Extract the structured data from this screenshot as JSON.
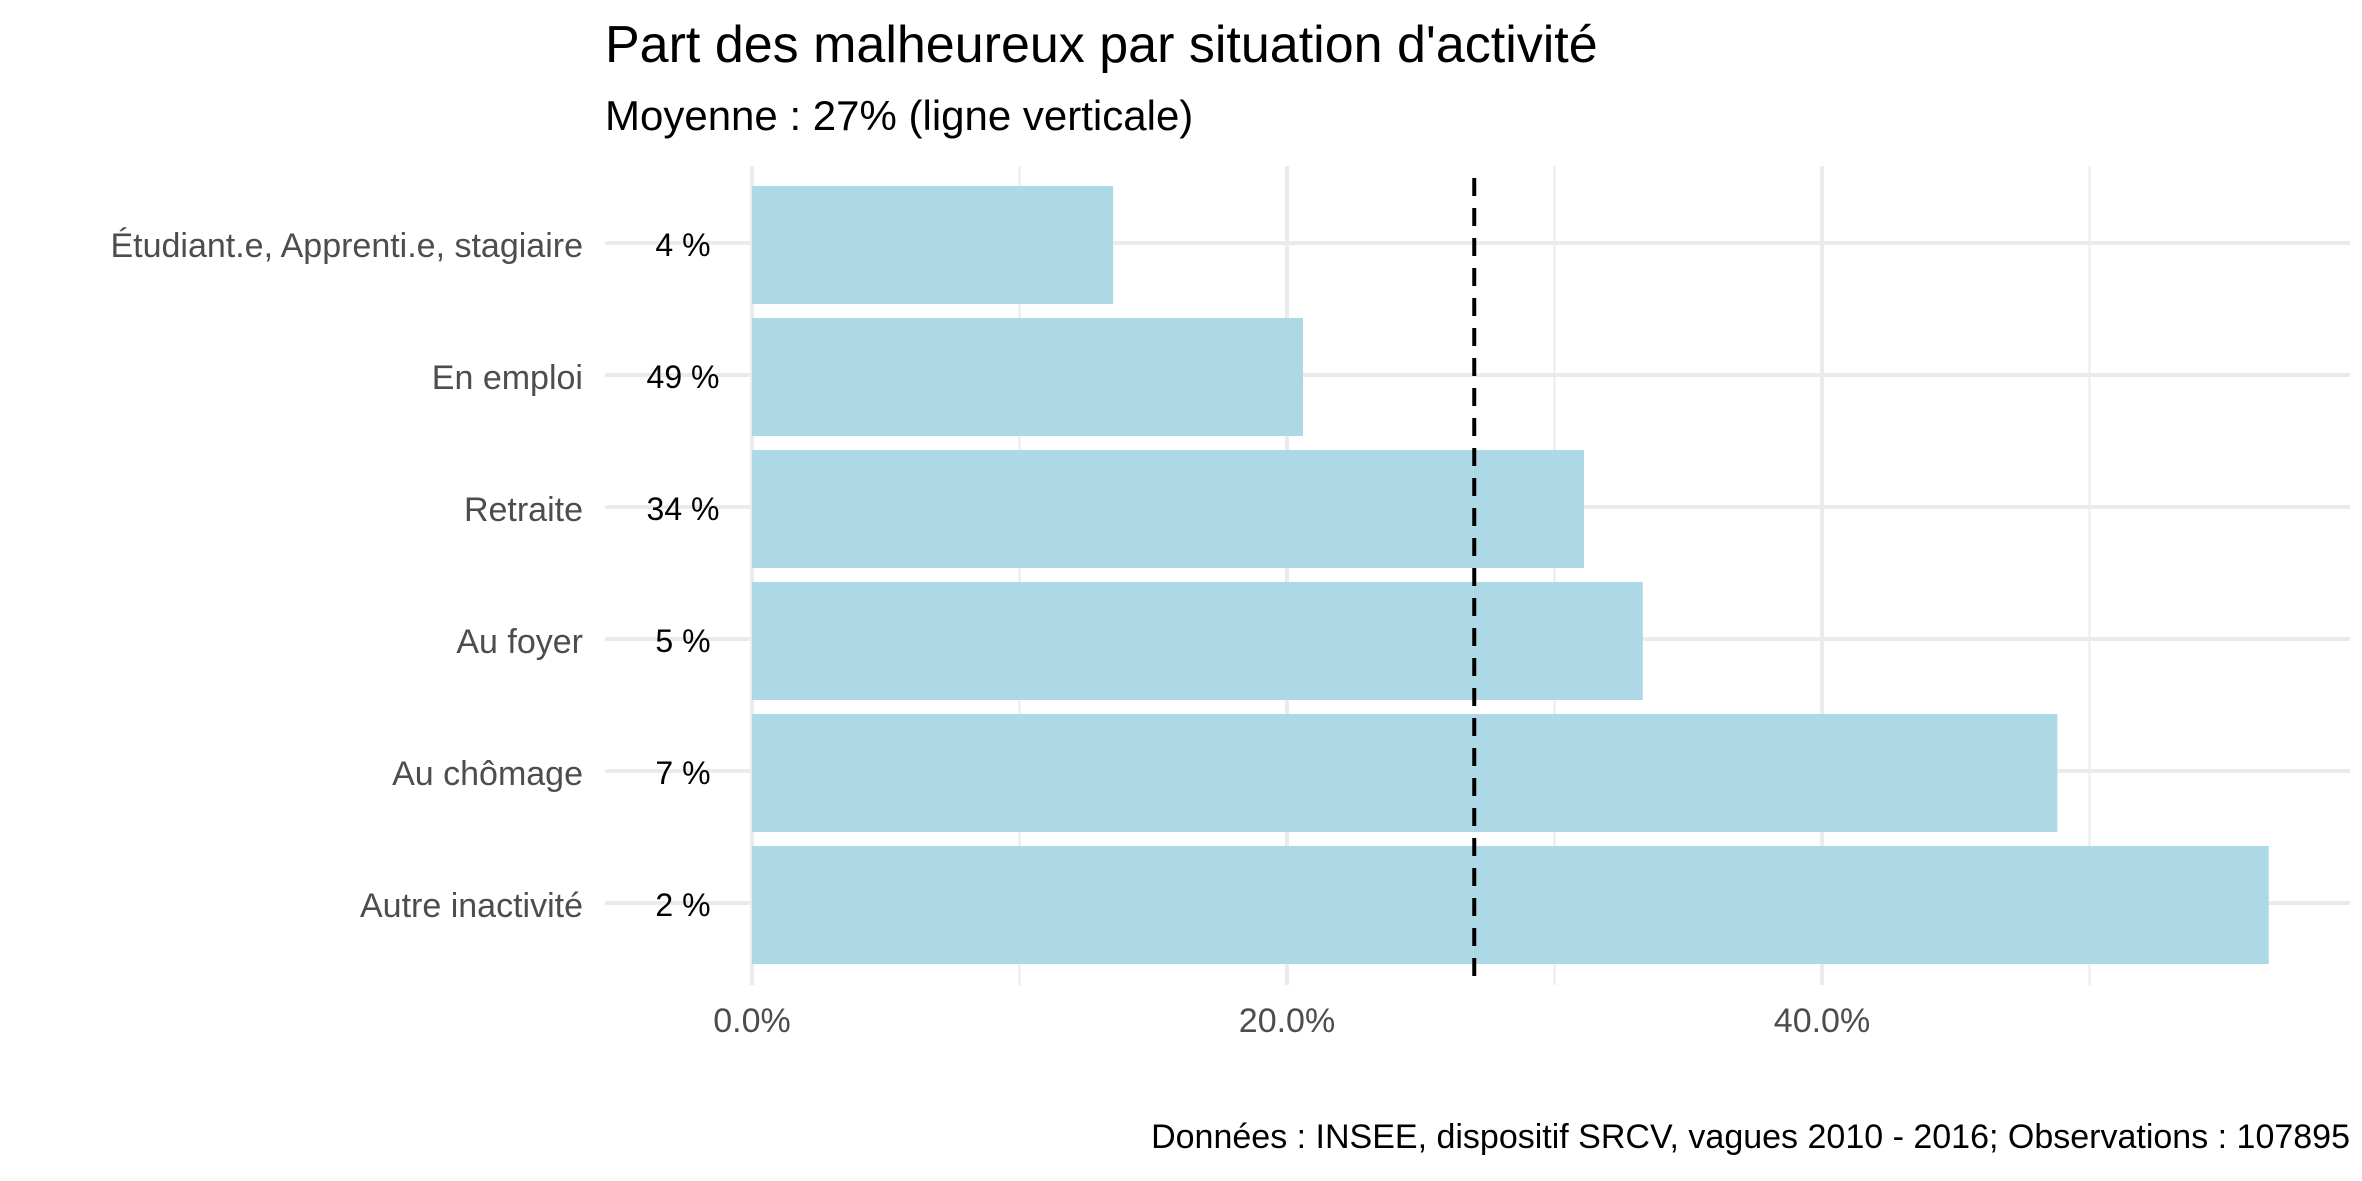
{
  "chart_data": {
    "type": "bar",
    "orientation": "horizontal",
    "title": "Part des malheureux par situation d'activité",
    "subtitle": "Moyenne : 27% (ligne verticale)",
    "caption": "Données : INSEE, dispositif SRCV, vagues 2010 - 2016; Observations : 107895",
    "categories": [
      "Étudiant.e, Apprenti.e, stagiaire",
      "En emploi",
      "Retraite",
      "Au foyer",
      "Au chômage",
      "Autre inactivité"
    ],
    "values": [
      13.5,
      20.6,
      31.1,
      33.3,
      48.8,
      56.7
    ],
    "shares": [
      "4 %",
      "49 %",
      "34 %",
      "5 %",
      "7 %",
      "2 %"
    ],
    "xlim": [
      0,
      60
    ],
    "xticks": [
      0,
      20,
      40
    ],
    "xtick_labels": [
      "0.0%",
      "20.0%",
      "40.0%"
    ],
    "reference_line": 27,
    "grid": true,
    "bar_color": "#add8e6"
  }
}
